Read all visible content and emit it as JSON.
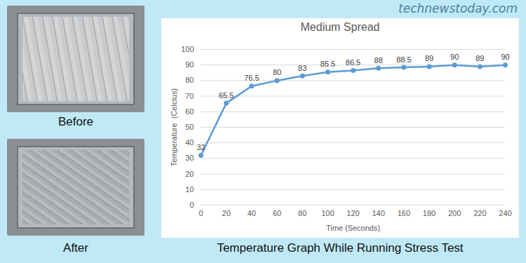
{
  "site": "technewstoday.com",
  "photos": [
    {
      "label": "Before"
    },
    {
      "label": "After"
    }
  ],
  "caption": "Temperature Graph While Running Stress Test",
  "chart_data": {
    "type": "line",
    "title": "Medium Spread",
    "x_label": "Time (Seconds)",
    "y_label": "Temperature  (Celcius)",
    "x": [
      0,
      20,
      40,
      60,
      80,
      100,
      120,
      140,
      160,
      180,
      200,
      220,
      240
    ],
    "values": [
      32,
      65.5,
      76.5,
      80,
      83,
      85.5,
      86.5,
      88,
      88.5,
      89,
      90,
      89,
      90
    ],
    "color": "#5b9bd5",
    "marker": "circle",
    "line_style": "solid",
    "xlim": [
      0,
      240
    ],
    "xticks": [
      0,
      20,
      40,
      60,
      80,
      100,
      120,
      140,
      160,
      180,
      200,
      220,
      240
    ],
    "ylim": [
      0,
      100
    ],
    "yticks": [
      0,
      10,
      20,
      30,
      40,
      50,
      60,
      70,
      80,
      90,
      100
    ],
    "grid": true,
    "data_labels": true
  }
}
